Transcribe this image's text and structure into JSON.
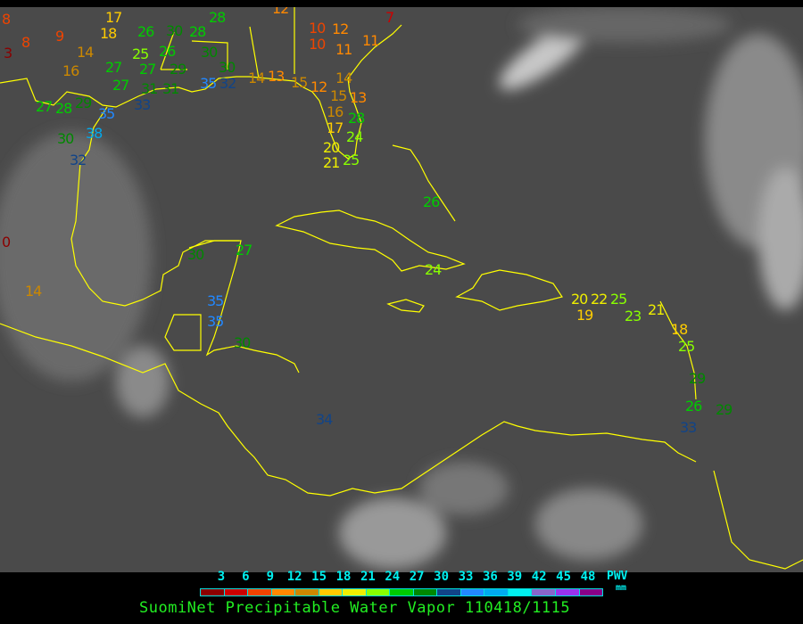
{
  "caption": "SuomiNet Precipitable Water Vapor 110418/1115",
  "legend": {
    "ticks": [
      "3",
      "6",
      "9",
      "12",
      "15",
      "18",
      "21",
      "24",
      "27",
      "30",
      "33",
      "36",
      "39",
      "42",
      "45",
      "48"
    ],
    "unit_top": "PWV",
    "unit_bottom": "mm",
    "colors": [
      "#8b0000",
      "#cc0000",
      "#ee4400",
      "#ff8800",
      "#cc8800",
      "#ffcc00",
      "#eeee00",
      "#88ff00",
      "#00cc00",
      "#008800",
      "#114488",
      "#2288ff",
      "#00aaee",
      "#00eeee",
      "#8866cc",
      "#9933ee",
      "#880088"
    ]
  },
  "colors": {
    "coastline": "#ffff00",
    "background": "#4a4a4a"
  },
  "stations": [
    "8",
    "9",
    "8",
    "3",
    "17",
    "18",
    "14",
    "16",
    "12",
    "26",
    "30",
    "28",
    "28",
    "25",
    "26",
    "27",
    "27",
    "29",
    "30",
    "30",
    "27",
    "31",
    "31",
    "35",
    "32",
    "33",
    "35",
    "38",
    "27",
    "28",
    "29",
    "30",
    "32",
    "10",
    "12",
    "10",
    "11",
    "11",
    "7",
    "14",
    "13",
    "15",
    "12",
    "15",
    "13",
    "14",
    "16",
    "17",
    "28",
    "24",
    "20",
    "21",
    "25",
    "26",
    "24",
    "0",
    "14",
    "30",
    "27",
    "35",
    "35",
    "30",
    "34",
    "20",
    "19",
    "22",
    "25",
    "23",
    "21",
    "18",
    "25",
    "29",
    "26",
    "29",
    "33"
  ]
}
